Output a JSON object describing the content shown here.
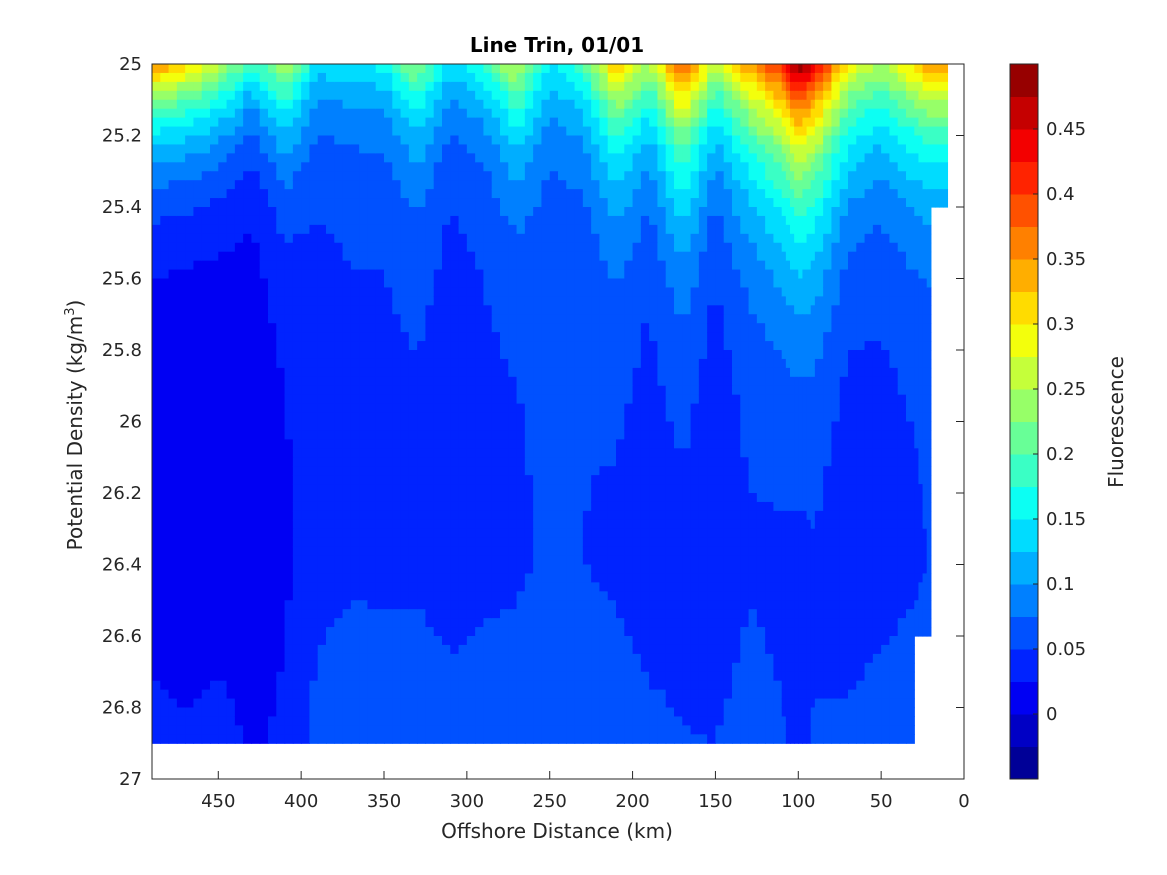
{
  "chart_data": {
    "type": "heatmap",
    "subtype": "filled-contour",
    "title": "Line Trin, 01/01",
    "xlabel": "Offshore Distance (km)",
    "ylabel_main": "Potential Density (kg/m",
    "ylabel_sup": "3",
    "ylabel_close": ")",
    "colorbar_label": "Fluorescence",
    "xlim": [
      490,
      0
    ],
    "x_reversed": true,
    "ylim": [
      25,
      27
    ],
    "y_reversed": true,
    "xticks": [
      450,
      400,
      350,
      300,
      250,
      200,
      150,
      100,
      50,
      0
    ],
    "xtick_labels": [
      "450",
      "400",
      "350",
      "300",
      "250",
      "200",
      "150",
      "100",
      "50",
      "0"
    ],
    "yticks": [
      25,
      25.2,
      25.4,
      25.6,
      25.8,
      26,
      26.2,
      26.4,
      26.6,
      26.8,
      27
    ],
    "ytick_labels": [
      "25",
      "25.2",
      "25.4",
      "25.6",
      "25.8",
      "26",
      "26.2",
      "26.4",
      "26.6",
      "26.8",
      "27"
    ],
    "colorbar_range": [
      -0.05,
      0.5
    ],
    "colorbar_ticks": [
      0,
      0.05,
      0.1,
      0.15,
      0.2,
      0.25,
      0.3,
      0.35,
      0.4,
      0.45
    ],
    "colorbar_tick_labels": [
      "0",
      "0.05",
      "0.1",
      "0.15",
      "0.2",
      "0.25",
      "0.3",
      "0.35",
      "0.4",
      "0.45"
    ],
    "colorbar_levels": [
      -0.05,
      -0.025,
      0,
      0.025,
      0.05,
      0.075,
      0.1,
      0.125,
      0.15,
      0.175,
      0.2,
      0.225,
      0.25,
      0.275,
      0.3,
      0.325,
      0.35,
      0.375,
      0.4,
      0.425,
      0.45,
      0.475,
      0.5
    ],
    "colormap": "jet",
    "field": {
      "x": [
        490,
        470,
        450,
        430,
        410,
        390,
        370,
        350,
        330,
        310,
        290,
        270,
        250,
        230,
        210,
        190,
        170,
        150,
        130,
        110,
        100,
        90,
        70,
        50,
        30,
        20,
        10
      ],
      "y": [
        25.0,
        25.1,
        25.2,
        25.3,
        25.4,
        25.5,
        25.6,
        25.7,
        25.8,
        25.9,
        26.0,
        26.1,
        26.2,
        26.3,
        26.4,
        26.5,
        26.6,
        26.7,
        26.8,
        26.9
      ],
      "surface": [
        0.36,
        0.32,
        0.27,
        0.18,
        0.26,
        0.14,
        0.15,
        0.16,
        0.24,
        0.14,
        0.18,
        0.27,
        0.15,
        0.2,
        0.33,
        0.25,
        0.4,
        0.26,
        0.35,
        0.42,
        0.5,
        0.45,
        0.3,
        0.25,
        0.32,
        0.36,
        0.36
      ],
      "decay": [
        0.36,
        0.36,
        0.36,
        0.3,
        0.38,
        0.3,
        0.3,
        0.3,
        0.36,
        0.28,
        0.3,
        0.38,
        0.3,
        0.32,
        0.44,
        0.36,
        0.5,
        0.36,
        0.46,
        0.55,
        0.58,
        0.56,
        0.45,
        0.4,
        0.42,
        0.4,
        0.38
      ],
      "floor": [
        0.0,
        0.0,
        0.0,
        0.01,
        0.02,
        0.04,
        0.045,
        0.045,
        0.045,
        0.04,
        0.045,
        0.045,
        0.055,
        0.05,
        0.045,
        0.04,
        0.04,
        0.035,
        0.045,
        0.04,
        0.035,
        0.04,
        0.035,
        0.04,
        0.045,
        0.05,
        0.06
      ],
      "deep": [
        0.04,
        0.03,
        0.04,
        0.02,
        0.03,
        0.06,
        0.07,
        0.065,
        0.065,
        0.06,
        0.06,
        0.065,
        0.07,
        0.065,
        0.06,
        0.055,
        0.05,
        0.05,
        0.06,
        0.05,
        0.045,
        0.05,
        0.055,
        0.06,
        0.065,
        0.065,
        0.065
      ],
      "valid_bottom": [
        26.9,
        26.9,
        26.9,
        26.9,
        26.9,
        26.9,
        26.9,
        26.9,
        26.9,
        26.9,
        26.9,
        26.9,
        26.9,
        26.9,
        26.9,
        26.9,
        26.9,
        26.9,
        26.9,
        26.9,
        26.9,
        26.9,
        26.9,
        26.9,
        26.9,
        26.6,
        25.4
      ]
    }
  }
}
